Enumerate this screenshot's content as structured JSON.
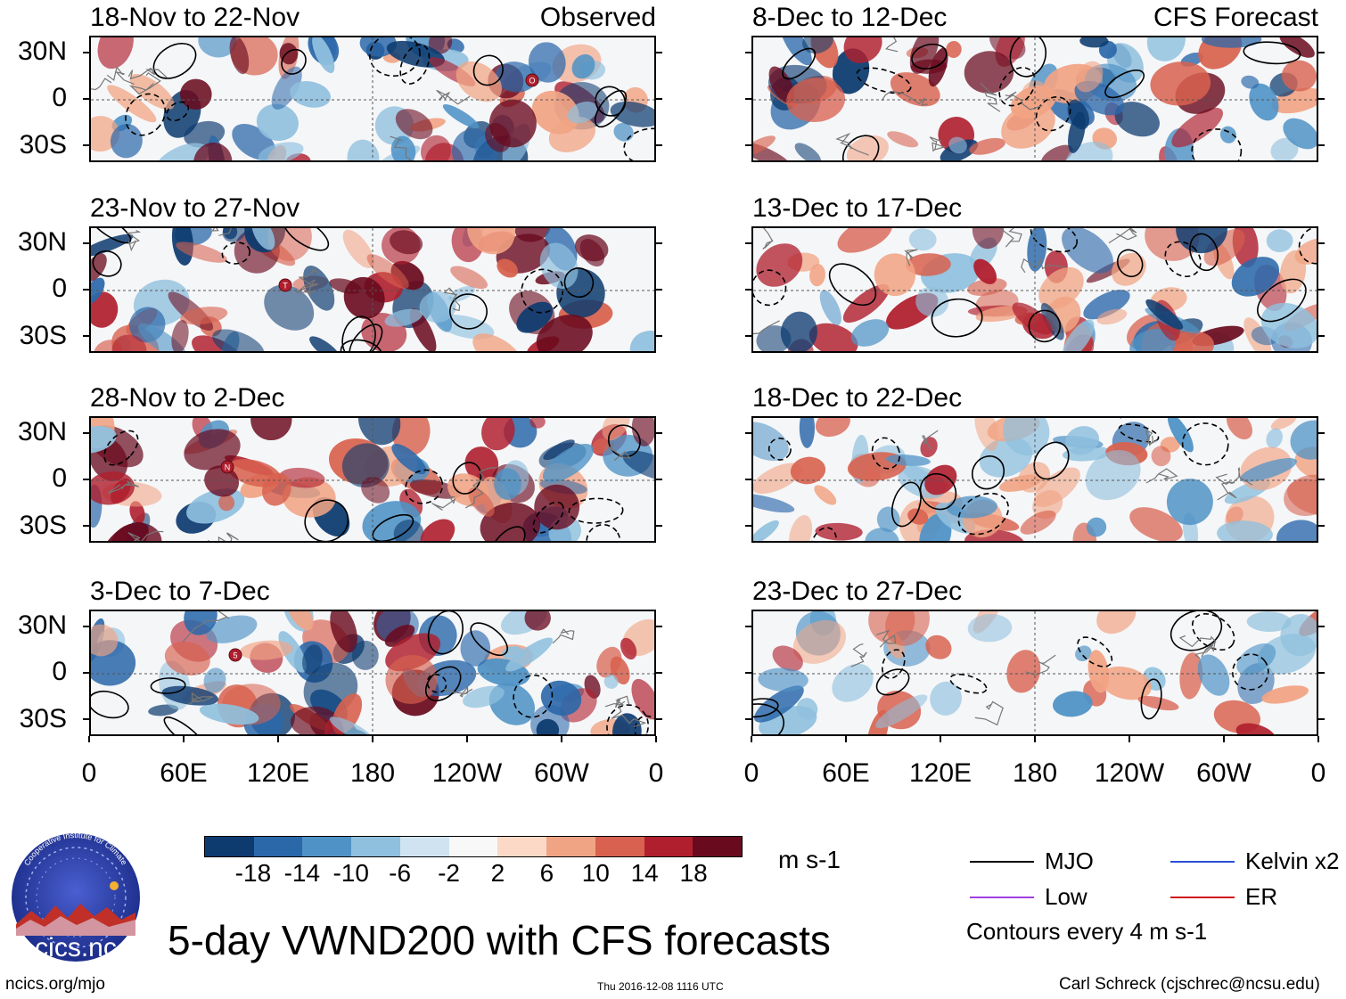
{
  "chart_data": {
    "type": "heatmap",
    "title": "5-day VWND200 with CFS forecasts",
    "variable": "VWND200",
    "units": "m s-1",
    "lat_ticks": [
      "30N",
      "0",
      "30S"
    ],
    "lon_ticks": [
      "0",
      "60E",
      "120E",
      "180",
      "120W",
      "60W",
      "0"
    ],
    "panels": [
      {
        "id": "p1",
        "title": "18-Nov to 22-Nov",
        "tag": "Observed"
      },
      {
        "id": "p2",
        "title": "23-Nov to 27-Nov",
        "tag": ""
      },
      {
        "id": "p3",
        "title": "28-Nov to 2-Dec",
        "tag": ""
      },
      {
        "id": "p4",
        "title": "3-Dec to 7-Dec",
        "tag": ""
      },
      {
        "id": "p5",
        "title": "8-Dec to 12-Dec",
        "tag": "CFS Forecast"
      },
      {
        "id": "p6",
        "title": "13-Dec to 17-Dec",
        "tag": ""
      },
      {
        "id": "p7",
        "title": "18-Dec to 22-Dec",
        "tag": ""
      },
      {
        "id": "p8",
        "title": "23-Dec to 27-Dec",
        "tag": ""
      }
    ],
    "colorbar": {
      "colors": [
        "#0d3b70",
        "#2b68aa",
        "#4f93c6",
        "#8fc0de",
        "#cfe4f0",
        "#f8f8f8",
        "#fbd9c6",
        "#f1a484",
        "#d8624f",
        "#b01f2e",
        "#6a0a1e"
      ],
      "labels": [
        "-18",
        "-14",
        "-10",
        "-6",
        "-2",
        "2",
        "6",
        "10",
        "14",
        "18"
      ]
    },
    "legend": [
      {
        "label": "MJO",
        "color": "#000000"
      },
      {
        "label": "Kelvin x2",
        "color": "#2a4fd6"
      },
      {
        "label": "Low",
        "color": "#a040e0"
      },
      {
        "label": "ER",
        "color": "#d01818"
      }
    ],
    "contour_note": "Contours every 4 m s-1"
  },
  "logo": {
    "text": "cics.nc",
    "ring_text": "Cooperative Institute for Climate and Satellites"
  },
  "footer": {
    "left": "ncics.org/mjo",
    "center": "Thu 2016-12-08 1116 UTC",
    "right": "Carl Schreck (cjschrec@ncsu.edu)"
  },
  "storm_markers": [
    {
      "panel": "p1",
      "letter": "O"
    },
    {
      "panel": "p2",
      "letter": "T"
    },
    {
      "panel": "p3",
      "letter": "N"
    },
    {
      "panel": "p4",
      "letter": "5"
    }
  ]
}
